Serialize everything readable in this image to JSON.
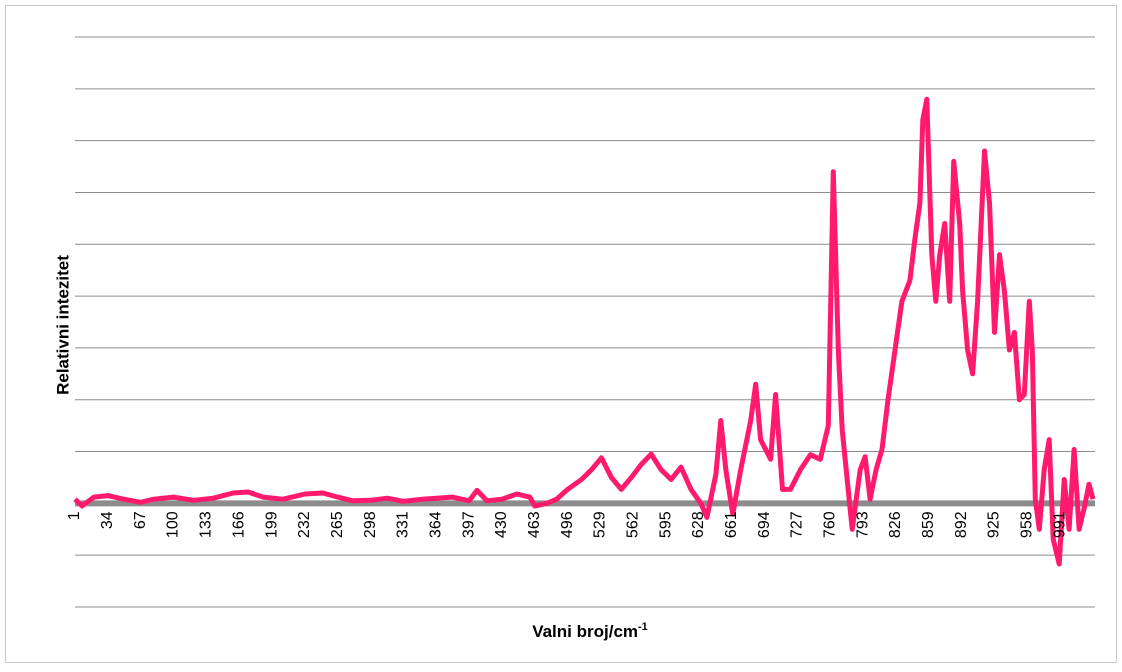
{
  "chart_data": {
    "type": "line",
    "ylabel": "Relativni intezitet",
    "xlabel": {
      "text": "Valni broj/cm",
      "sup": "-1"
    },
    "color": "#ff1a6e",
    "baseline_color": "#8c8c8c",
    "grid": true,
    "ytick_labels": false,
    "xlim": [
      1,
      1026
    ],
    "xticks": [
      1,
      34,
      67,
      100,
      133,
      166,
      199,
      232,
      265,
      298,
      331,
      364,
      397,
      430,
      463,
      496,
      529,
      562,
      595,
      628,
      661,
      694,
      727,
      760,
      793,
      826,
      859,
      892,
      925,
      958,
      991
    ],
    "ylim": [
      -2,
      9
    ],
    "yticks": [
      -2,
      -1,
      0,
      1,
      2,
      3,
      4,
      5,
      6,
      7,
      8,
      9
    ],
    "x": [
      1,
      8,
      20,
      34,
      50,
      67,
      80,
      100,
      120,
      140,
      160,
      175,
      190,
      210,
      232,
      250,
      265,
      280,
      298,
      315,
      331,
      350,
      364,
      380,
      397,
      405,
      415,
      430,
      445,
      458,
      463,
      475,
      485,
      496,
      510,
      520,
      530,
      540,
      550,
      560,
      570,
      580,
      590,
      600,
      610,
      620,
      630,
      636,
      645,
      650,
      655,
      662,
      670,
      680,
      685,
      690,
      700,
      705,
      712,
      720,
      730,
      740,
      750,
      758,
      763,
      768,
      772,
      776,
      782,
      790,
      795,
      800,
      806,
      812,
      818,
      825,
      832,
      840,
      845,
      850,
      853,
      857,
      862,
      866,
      870,
      875,
      880,
      884,
      890,
      893,
      898,
      903,
      908,
      915,
      920,
      925,
      930,
      935,
      940,
      945,
      950,
      955,
      960,
      963,
      966,
      970,
      975,
      980,
      984,
      990,
      995,
      1000,
      1005,
      1010,
      1015,
      1020,
      1024
    ],
    "values": [
      0.08,
      -0.05,
      0.12,
      0.15,
      0.08,
      0.02,
      0.08,
      0.12,
      0.06,
      0.1,
      0.2,
      0.22,
      0.12,
      0.08,
      0.18,
      0.2,
      0.12,
      0.05,
      0.06,
      0.1,
      0.04,
      0.08,
      0.1,
      0.12,
      0.05,
      0.25,
      0.05,
      0.08,
      0.18,
      0.12,
      -0.05,
      0.0,
      0.08,
      0.27,
      0.46,
      0.65,
      0.88,
      0.5,
      0.27,
      0.5,
      0.75,
      0.95,
      0.65,
      0.46,
      0.7,
      0.27,
      0,
      -0.27,
      0.56,
      1.6,
      0.65,
      -0.21,
      0.65,
      1.6,
      2.3,
      1.23,
      0.85,
      2.1,
      0.27,
      0.27,
      0.65,
      0.94,
      0.85,
      1.5,
      6.4,
      2.96,
      1.42,
      0.65,
      -0.5,
      0.65,
      0.9,
      0.08,
      0.65,
      1.04,
      2.0,
      2.96,
      3.9,
      4.3,
      5.1,
      5.8,
      7.4,
      7.8,
      4.8,
      3.9,
      4.8,
      5.4,
      3.9,
      6.6,
      5.4,
      4.1,
      2.96,
      2.5,
      3.9,
      6.8,
      5.8,
      3.3,
      4.8,
      4.1,
      2.96,
      3.3,
      2.0,
      2.1,
      3.9,
      2.96,
      0.08,
      -0.5,
      0.65,
      1.23,
      -0.69,
      -1.17,
      0.46,
      -0.5,
      1.04,
      -0.5,
      -0.1,
      0.37,
      0.08
    ]
  }
}
